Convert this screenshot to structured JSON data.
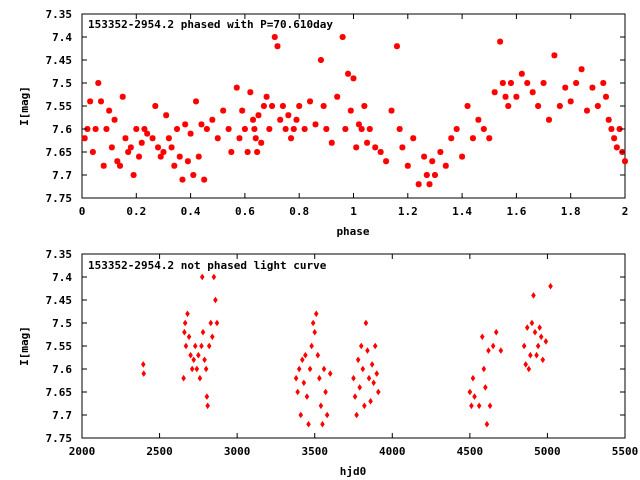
{
  "chart_data": [
    {
      "type": "scatter",
      "title": "153352-2954.2 phased with P=70.610day",
      "xlabel": "phase",
      "ylabel": "I[mag]",
      "xlim": [
        0,
        2
      ],
      "ylim": [
        7.35,
        7.75
      ],
      "y_inverted": true,
      "grid": false,
      "marker_color": "#ff0000",
      "marker": "star",
      "xticks": [
        "0",
        "0.2",
        "0.4",
        "0.6",
        "0.8",
        "1",
        "1.2",
        "1.4",
        "1.6",
        "1.8",
        "2"
      ],
      "xtick_values": [
        0,
        0.2,
        0.4,
        0.6,
        0.8,
        1.0,
        1.2,
        1.4,
        1.6,
        1.8,
        2.0
      ],
      "yticks": [
        "7.35",
        "7.4",
        "7.45",
        "7.5",
        "7.55",
        "7.6",
        "7.65",
        "7.7",
        "7.75"
      ],
      "ytick_values": [
        7.35,
        7.4,
        7.45,
        7.5,
        7.55,
        7.6,
        7.65,
        7.7,
        7.75
      ],
      "points": [
        [
          0.01,
          7.62
        ],
        [
          0.02,
          7.6
        ],
        [
          0.03,
          7.54
        ],
        [
          0.04,
          7.65
        ],
        [
          0.05,
          7.6
        ],
        [
          0.06,
          7.5
        ],
        [
          0.07,
          7.54
        ],
        [
          0.08,
          7.68
        ],
        [
          0.09,
          7.6
        ],
        [
          0.1,
          7.56
        ],
        [
          0.11,
          7.64
        ],
        [
          0.12,
          7.58
        ],
        [
          0.13,
          7.67
        ],
        [
          0.14,
          7.68
        ],
        [
          0.15,
          7.53
        ],
        [
          0.16,
          7.62
        ],
        [
          0.17,
          7.65
        ],
        [
          0.18,
          7.64
        ],
        [
          0.19,
          7.7
        ],
        [
          0.2,
          7.6
        ],
        [
          0.21,
          7.66
        ],
        [
          0.22,
          7.63
        ],
        [
          0.23,
          7.6
        ],
        [
          0.24,
          7.61
        ],
        [
          0.26,
          7.62
        ],
        [
          0.27,
          7.55
        ],
        [
          0.28,
          7.64
        ],
        [
          0.29,
          7.66
        ],
        [
          0.3,
          7.65
        ],
        [
          0.31,
          7.57
        ],
        [
          0.32,
          7.62
        ],
        [
          0.33,
          7.64
        ],
        [
          0.34,
          7.68
        ],
        [
          0.35,
          7.6
        ],
        [
          0.36,
          7.66
        ],
        [
          0.37,
          7.71
        ],
        [
          0.38,
          7.59
        ],
        [
          0.39,
          7.67
        ],
        [
          0.4,
          7.61
        ],
        [
          0.41,
          7.7
        ],
        [
          0.42,
          7.54
        ],
        [
          0.43,
          7.66
        ],
        [
          0.44,
          7.59
        ],
        [
          0.45,
          7.71
        ],
        [
          0.46,
          7.6
        ],
        [
          0.48,
          7.58
        ],
        [
          0.5,
          7.62
        ],
        [
          0.52,
          7.56
        ],
        [
          0.54,
          7.6
        ],
        [
          0.55,
          7.65
        ],
        [
          0.57,
          7.51
        ],
        [
          0.58,
          7.62
        ],
        [
          0.59,
          7.56
        ],
        [
          0.6,
          7.6
        ],
        [
          0.61,
          7.65
        ],
        [
          0.62,
          7.52
        ],
        [
          0.63,
          7.58
        ],
        [
          0.635,
          7.6
        ],
        [
          0.64,
          7.62
        ],
        [
          0.645,
          7.65
        ],
        [
          0.65,
          7.57
        ],
        [
          0.66,
          7.63
        ],
        [
          0.67,
          7.55
        ],
        [
          0.68,
          7.53
        ],
        [
          0.69,
          7.6
        ],
        [
          0.7,
          7.55
        ],
        [
          0.71,
          7.4
        ],
        [
          0.72,
          7.42
        ],
        [
          0.73,
          7.58
        ],
        [
          0.74,
          7.55
        ],
        [
          0.75,
          7.6
        ],
        [
          0.76,
          7.57
        ],
        [
          0.77,
          7.62
        ],
        [
          0.78,
          7.6
        ],
        [
          0.79,
          7.58
        ],
        [
          0.8,
          7.55
        ],
        [
          0.82,
          7.6
        ],
        [
          0.84,
          7.54
        ],
        [
          0.86,
          7.59
        ],
        [
          0.88,
          7.45
        ],
        [
          0.89,
          7.55
        ],
        [
          0.9,
          7.6
        ],
        [
          0.92,
          7.63
        ],
        [
          0.94,
          7.53
        ],
        [
          0.96,
          7.4
        ],
        [
          0.97,
          7.6
        ],
        [
          0.98,
          7.48
        ],
        [
          0.99,
          7.56
        ],
        [
          1.0,
          7.49
        ],
        [
          1.01,
          7.64
        ],
        [
          1.02,
          7.59
        ],
        [
          1.03,
          7.6
        ],
        [
          1.04,
          7.55
        ],
        [
          1.05,
          7.63
        ],
        [
          1.06,
          7.6
        ],
        [
          1.08,
          7.64
        ],
        [
          1.1,
          7.65
        ],
        [
          1.12,
          7.67
        ],
        [
          1.14,
          7.56
        ],
        [
          1.16,
          7.42
        ],
        [
          1.17,
          7.6
        ],
        [
          1.18,
          7.64
        ],
        [
          1.2,
          7.68
        ],
        [
          1.22,
          7.62
        ],
        [
          1.24,
          7.72
        ],
        [
          1.26,
          7.66
        ],
        [
          1.27,
          7.7
        ],
        [
          1.28,
          7.72
        ],
        [
          1.29,
          7.67
        ],
        [
          1.3,
          7.7
        ],
        [
          1.32,
          7.65
        ],
        [
          1.34,
          7.68
        ],
        [
          1.36,
          7.62
        ],
        [
          1.38,
          7.6
        ],
        [
          1.4,
          7.66
        ],
        [
          1.42,
          7.55
        ],
        [
          1.44,
          7.62
        ],
        [
          1.46,
          7.58
        ],
        [
          1.48,
          7.6
        ],
        [
          1.5,
          7.62
        ],
        [
          1.52,
          7.52
        ],
        [
          1.54,
          7.41
        ],
        [
          1.55,
          7.5
        ],
        [
          1.56,
          7.53
        ],
        [
          1.57,
          7.55
        ],
        [
          1.58,
          7.5
        ],
        [
          1.6,
          7.53
        ],
        [
          1.62,
          7.48
        ],
        [
          1.64,
          7.5
        ],
        [
          1.66,
          7.52
        ],
        [
          1.68,
          7.55
        ],
        [
          1.7,
          7.5
        ],
        [
          1.72,
          7.58
        ],
        [
          1.74,
          7.44
        ],
        [
          1.76,
          7.55
        ],
        [
          1.78,
          7.51
        ],
        [
          1.8,
          7.54
        ],
        [
          1.82,
          7.5
        ],
        [
          1.84,
          7.47
        ],
        [
          1.86,
          7.56
        ],
        [
          1.88,
          7.51
        ],
        [
          1.9,
          7.55
        ],
        [
          1.92,
          7.5
        ],
        [
          1.93,
          7.53
        ],
        [
          1.94,
          7.58
        ],
        [
          1.95,
          7.6
        ],
        [
          1.96,
          7.62
        ],
        [
          1.97,
          7.64
        ],
        [
          1.98,
          7.6
        ],
        [
          1.99,
          7.65
        ],
        [
          2.0,
          7.67
        ]
      ]
    },
    {
      "type": "scatter",
      "title": "153352-2954.2 not phased light curve",
      "xlabel": "hjd0",
      "ylabel": "I[mag]",
      "xlim": [
        2000,
        5500
      ],
      "ylim": [
        7.35,
        7.75
      ],
      "y_inverted": true,
      "grid": false,
      "marker_color": "#ff0000",
      "marker": "diamond",
      "xticks": [
        "2000",
        "2500",
        "3000",
        "3500",
        "4000",
        "4500",
        "5000",
        "5500"
      ],
      "xtick_values": [
        2000,
        2500,
        3000,
        3500,
        4000,
        4500,
        5000,
        5500
      ],
      "yticks": [
        "7.35",
        "7.4",
        "7.45",
        "7.5",
        "7.55",
        "7.6",
        "7.65",
        "7.7",
        "7.75"
      ],
      "ytick_values": [
        7.35,
        7.4,
        7.45,
        7.5,
        7.55,
        7.6,
        7.65,
        7.7,
        7.75
      ],
      "points": [
        [
          2395,
          7.59
        ],
        [
          2398,
          7.61
        ],
        [
          2655,
          7.62
        ],
        [
          2660,
          7.52
        ],
        [
          2665,
          7.5
        ],
        [
          2670,
          7.55
        ],
        [
          2680,
          7.48
        ],
        [
          2690,
          7.53
        ],
        [
          2700,
          7.57
        ],
        [
          2710,
          7.6
        ],
        [
          2720,
          7.58
        ],
        [
          2730,
          7.55
        ],
        [
          2740,
          7.6
        ],
        [
          2750,
          7.57
        ],
        [
          2760,
          7.62
        ],
        [
          2770,
          7.55
        ],
        [
          2775,
          7.4
        ],
        [
          2780,
          7.52
        ],
        [
          2790,
          7.58
        ],
        [
          2800,
          7.6
        ],
        [
          2805,
          7.66
        ],
        [
          2810,
          7.68
        ],
        [
          2820,
          7.55
        ],
        [
          2830,
          7.5
        ],
        [
          2840,
          7.53
        ],
        [
          2850,
          7.4
        ],
        [
          2860,
          7.45
        ],
        [
          2870,
          7.5
        ],
        [
          3380,
          7.62
        ],
        [
          3390,
          7.65
        ],
        [
          3400,
          7.6
        ],
        [
          3410,
          7.7
        ],
        [
          3420,
          7.58
        ],
        [
          3430,
          7.63
        ],
        [
          3440,
          7.57
        ],
        [
          3450,
          7.66
        ],
        [
          3460,
          7.72
        ],
        [
          3470,
          7.6
        ],
        [
          3480,
          7.55
        ],
        [
          3490,
          7.5
        ],
        [
          3500,
          7.52
        ],
        [
          3510,
          7.48
        ],
        [
          3520,
          7.57
        ],
        [
          3530,
          7.62
        ],
        [
          3540,
          7.68
        ],
        [
          3550,
          7.72
        ],
        [
          3560,
          7.6
        ],
        [
          3570,
          7.65
        ],
        [
          3580,
          7.7
        ],
        [
          3600,
          7.61
        ],
        [
          3750,
          7.62
        ],
        [
          3760,
          7.66
        ],
        [
          3770,
          7.7
        ],
        [
          3780,
          7.58
        ],
        [
          3790,
          7.64
        ],
        [
          3800,
          7.55
        ],
        [
          3810,
          7.6
        ],
        [
          3820,
          7.68
        ],
        [
          3830,
          7.5
        ],
        [
          3840,
          7.56
        ],
        [
          3850,
          7.62
        ],
        [
          3860,
          7.67
        ],
        [
          3870,
          7.59
        ],
        [
          3880,
          7.63
        ],
        [
          3890,
          7.55
        ],
        [
          3900,
          7.61
        ],
        [
          3910,
          7.65
        ],
        [
          4500,
          7.65
        ],
        [
          4510,
          7.68
        ],
        [
          4520,
          7.62
        ],
        [
          4530,
          7.66
        ],
        [
          4560,
          7.68
        ],
        [
          4580,
          7.53
        ],
        [
          4590,
          7.6
        ],
        [
          4600,
          7.64
        ],
        [
          4610,
          7.72
        ],
        [
          4620,
          7.56
        ],
        [
          4630,
          7.68
        ],
        [
          4650,
          7.55
        ],
        [
          4670,
          7.52
        ],
        [
          4700,
          7.56
        ],
        [
          4850,
          7.55
        ],
        [
          4860,
          7.59
        ],
        [
          4870,
          7.51
        ],
        [
          4880,
          7.6
        ],
        [
          4890,
          7.57
        ],
        [
          4900,
          7.5
        ],
        [
          4910,
          7.44
        ],
        [
          4920,
          7.52
        ],
        [
          4930,
          7.57
        ],
        [
          4940,
          7.55
        ],
        [
          4950,
          7.51
        ],
        [
          4960,
          7.53
        ],
        [
          4970,
          7.58
        ],
        [
          4990,
          7.54
        ],
        [
          5020,
          7.42
        ]
      ]
    }
  ]
}
